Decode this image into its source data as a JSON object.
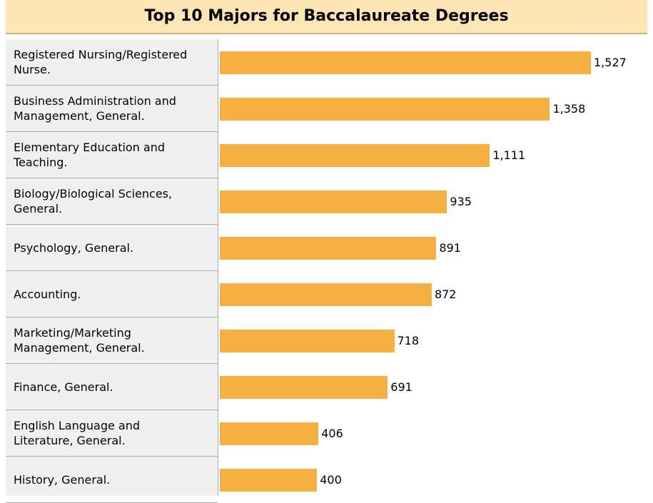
{
  "chart_data": {
    "type": "bar",
    "orientation": "horizontal",
    "title": "Top 10 Majors for Baccalaureate Degrees",
    "categories": [
      "Registered Nursing/Registered Nurse.",
      "Business Administration and Management, General.",
      "Elementary Education and Teaching.",
      "Biology/Biological Sciences, General.",
      "Psychology, General.",
      "Accounting.",
      "Marketing/Marketing Management, General.",
      "Finance, General.",
      "English Language and Literature, General.",
      "History, General."
    ],
    "values": [
      1527,
      1358,
      1111,
      935,
      891,
      872,
      718,
      691,
      406,
      400
    ],
    "value_labels": [
      "1,527",
      "1,358",
      "1,111",
      "935",
      "891",
      "872",
      "718",
      "691",
      "406",
      "400"
    ],
    "color": "#f5b041"
  }
}
